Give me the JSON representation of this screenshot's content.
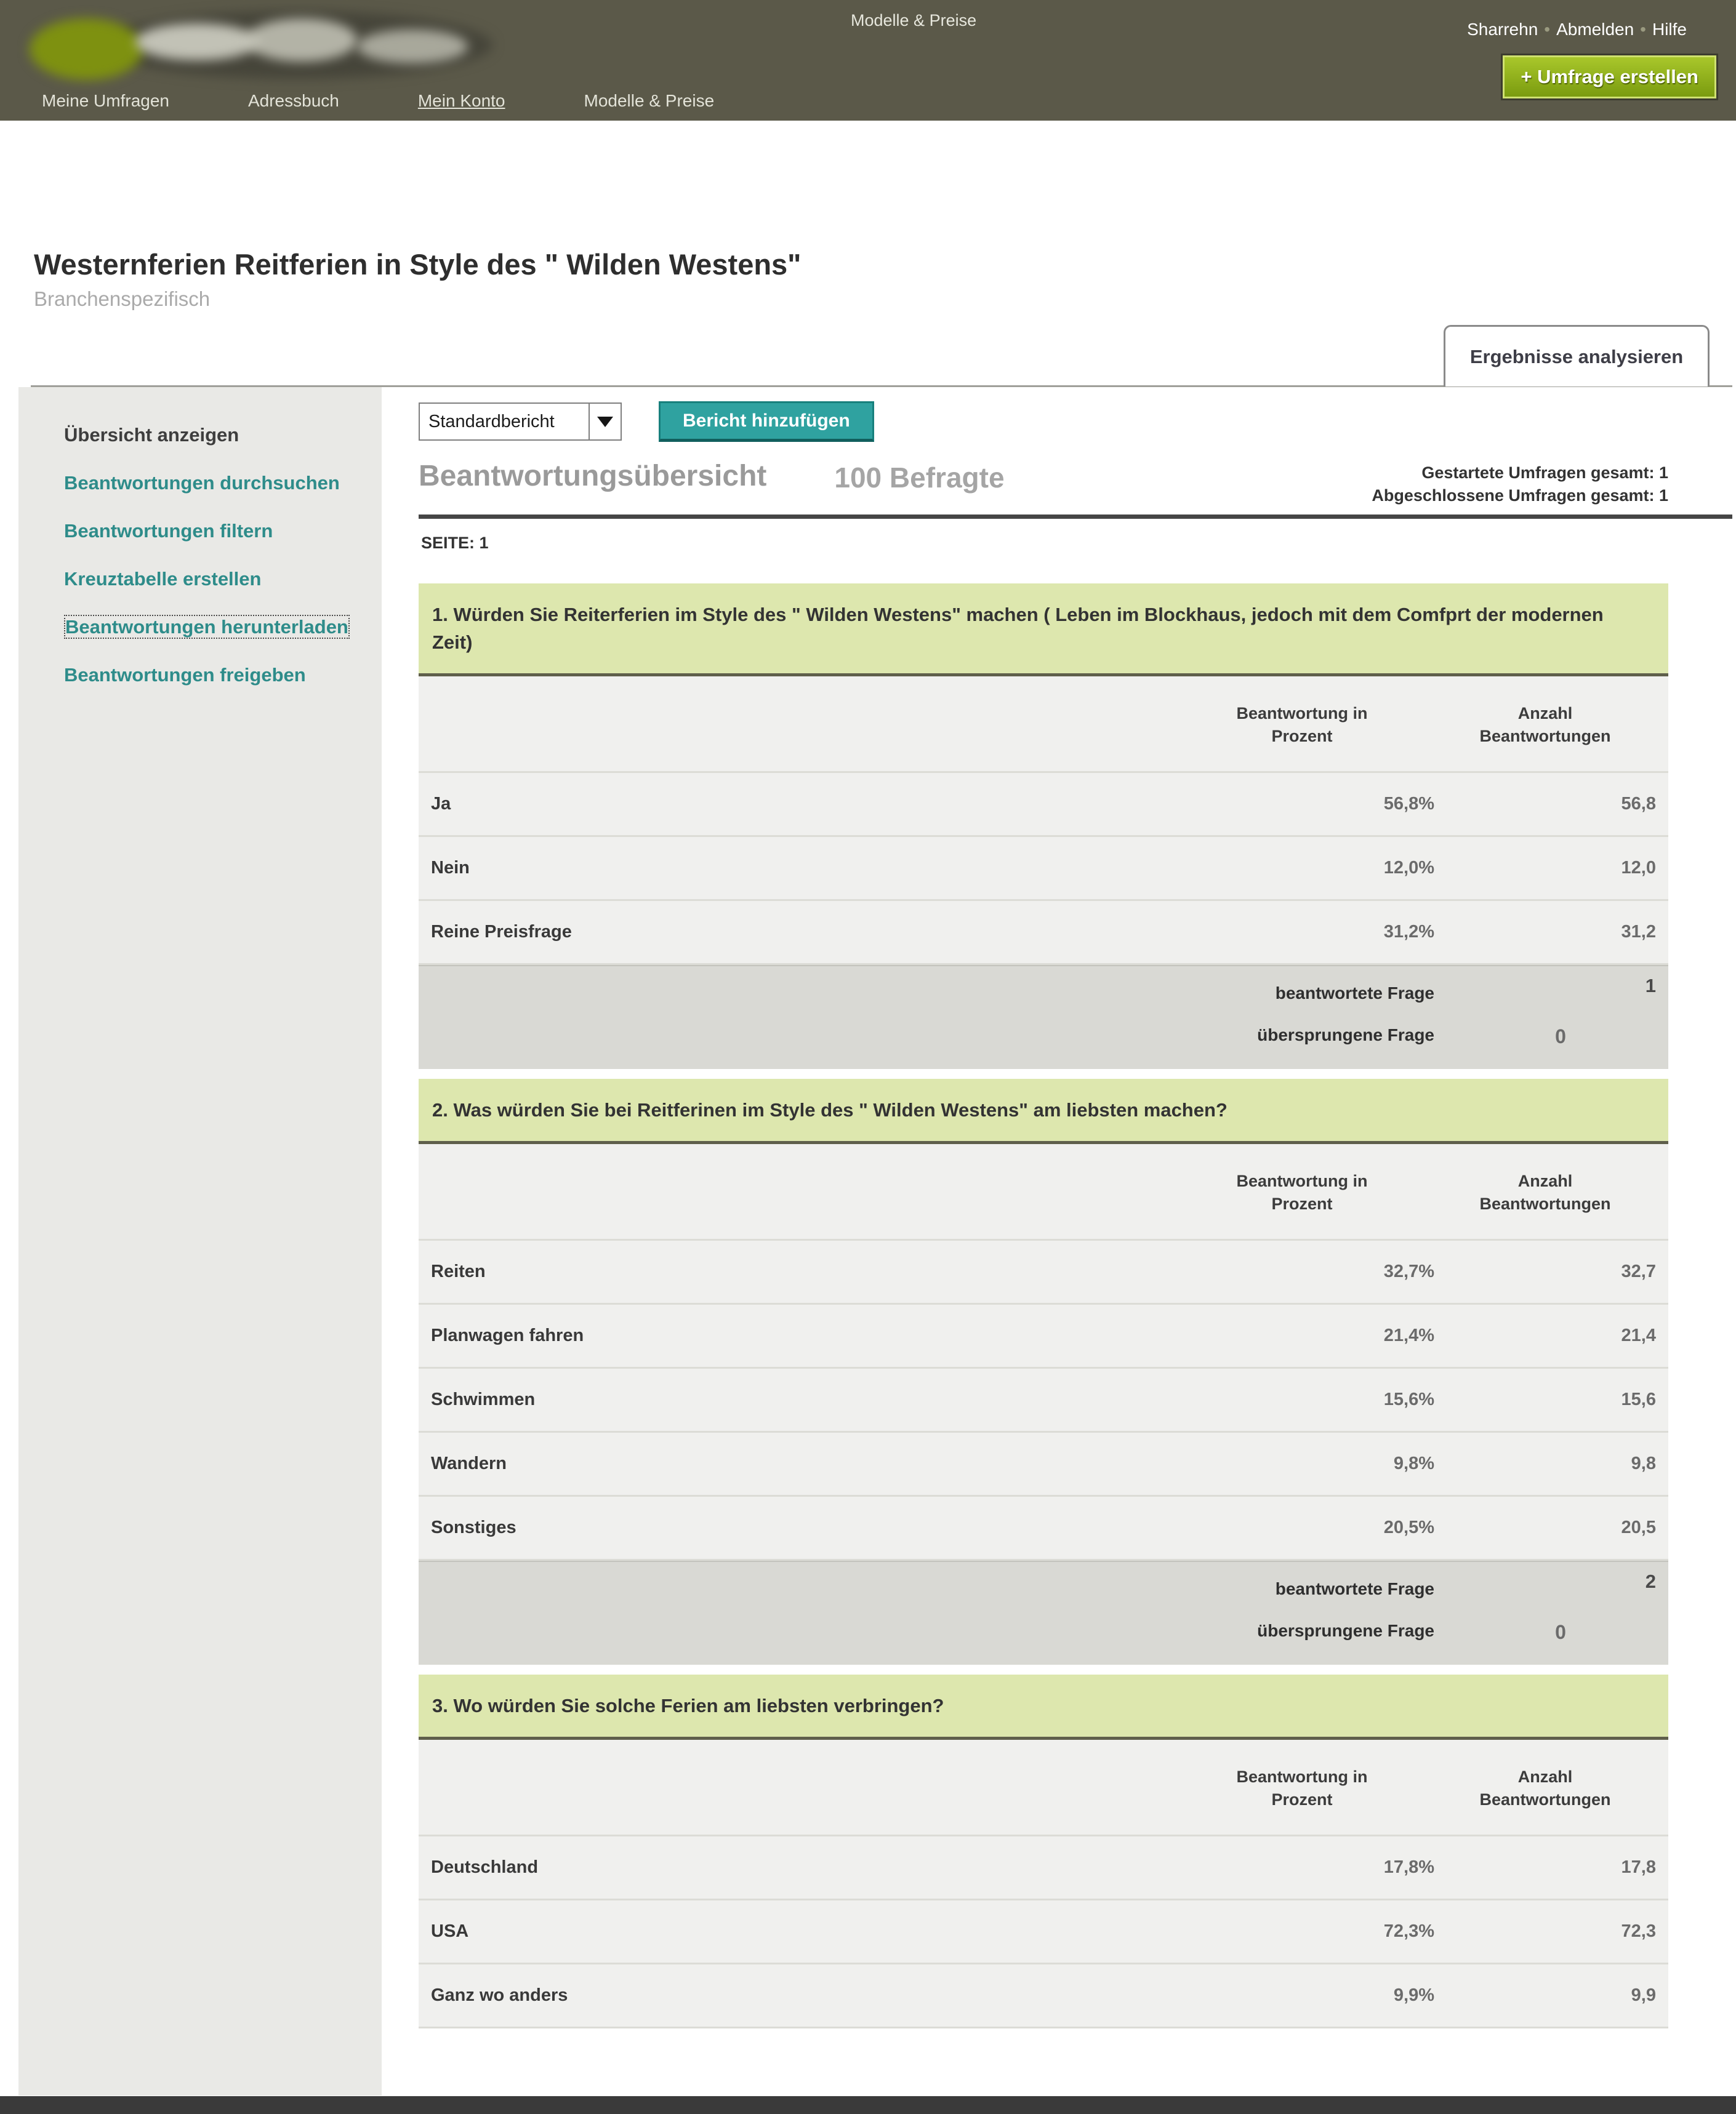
{
  "header": {
    "top_center_link": "Modelle & Preise",
    "user": {
      "name": "Sharrehn",
      "logout": "Abmelden",
      "help": "Hilfe"
    },
    "create_button": "+ Umfrage erstellen",
    "nav": {
      "my_surveys": "Meine Umfragen",
      "address_book": "Adressbuch",
      "my_account": "Mein Konto",
      "plans_pricing": "Modelle & Preise"
    }
  },
  "survey": {
    "title": "Westernferien Reitferien in Style des \" Wilden Westens\"",
    "category": "Branchenspezifisch",
    "tab": "Ergebnisse analysieren"
  },
  "sidebar": {
    "items": [
      {
        "label": "Übersicht anzeigen"
      },
      {
        "label": "Beantwortungen durchsuchen"
      },
      {
        "label": "Beantwortungen filtern"
      },
      {
        "label": "Kreuztabelle erstellen"
      },
      {
        "label": "Beantwortungen herunterladen"
      },
      {
        "label": "Beantwortungen freigeben"
      }
    ]
  },
  "toolbar": {
    "report_select_value": "Standardbericht",
    "add_report_button": "Bericht hinzufügen"
  },
  "overview": {
    "heading": "Beantwortungsübersicht",
    "respondents": "100 Befragte",
    "started_total": "Gestartete Umfragen gesamt: 1",
    "completed_total": "Abgeschlossene Umfragen gesamt: 1",
    "page_label": "SEITE: 1"
  },
  "table_headers": {
    "percent": "Beantwortung in Prozent",
    "count": "Anzahl Beantwortungen"
  },
  "footer_labels": {
    "answered": "beantwortete Frage",
    "skipped": "übersprungene Frage"
  },
  "questions": [
    {
      "title": "1. Würden Sie Reiterferien im Style des \" Wilden Westens\" machen ( Leben im Blockhaus, jedoch mit dem Comfprt der modernen Zeit)",
      "rows": [
        {
          "label": "Ja",
          "percent": "56,8%",
          "count": "56,8"
        },
        {
          "label": "Nein",
          "percent": "12,0%",
          "count": "12,0"
        },
        {
          "label": "Reine Preisfrage",
          "percent": "31,2%",
          "count": "31,2"
        }
      ],
      "answered": "1",
      "skipped": "0"
    },
    {
      "title": "2. Was würden Sie bei Reitferinen im Style des \" Wilden Westens\" am liebsten machen?",
      "rows": [
        {
          "label": "Reiten",
          "percent": "32,7%",
          "count": "32,7"
        },
        {
          "label": "Planwagen fahren",
          "percent": "21,4%",
          "count": "21,4"
        },
        {
          "label": "Schwimmen",
          "percent": "15,6%",
          "count": "15,6"
        },
        {
          "label": "Wandern",
          "percent": "9,8%",
          "count": "9,8"
        },
        {
          "label": "Sonstiges",
          "percent": "20,5%",
          "count": "20,5"
        }
      ],
      "answered": "2",
      "skipped": "0"
    },
    {
      "title": "3. Wo würden Sie solche Ferien am liebsten verbringen?",
      "rows": [
        {
          "label": "Deutschland",
          "percent": "17,8%",
          "count": "17,8"
        },
        {
          "label": "USA",
          "percent": "72,3%",
          "count": "72,3"
        },
        {
          "label": "Ganz wo anders",
          "percent": "9,9%",
          "count": "9,9"
        }
      ]
    }
  ],
  "colors": {
    "header_bg": "#5b5949",
    "accent_green": "#8fb31c",
    "accent_teal": "#2fa2a0",
    "link_teal": "#2e8c8a",
    "question_header_bg": "#dde7ae",
    "row_bg": "#f0f0ee",
    "footer_bg": "#d9d9d4"
  }
}
